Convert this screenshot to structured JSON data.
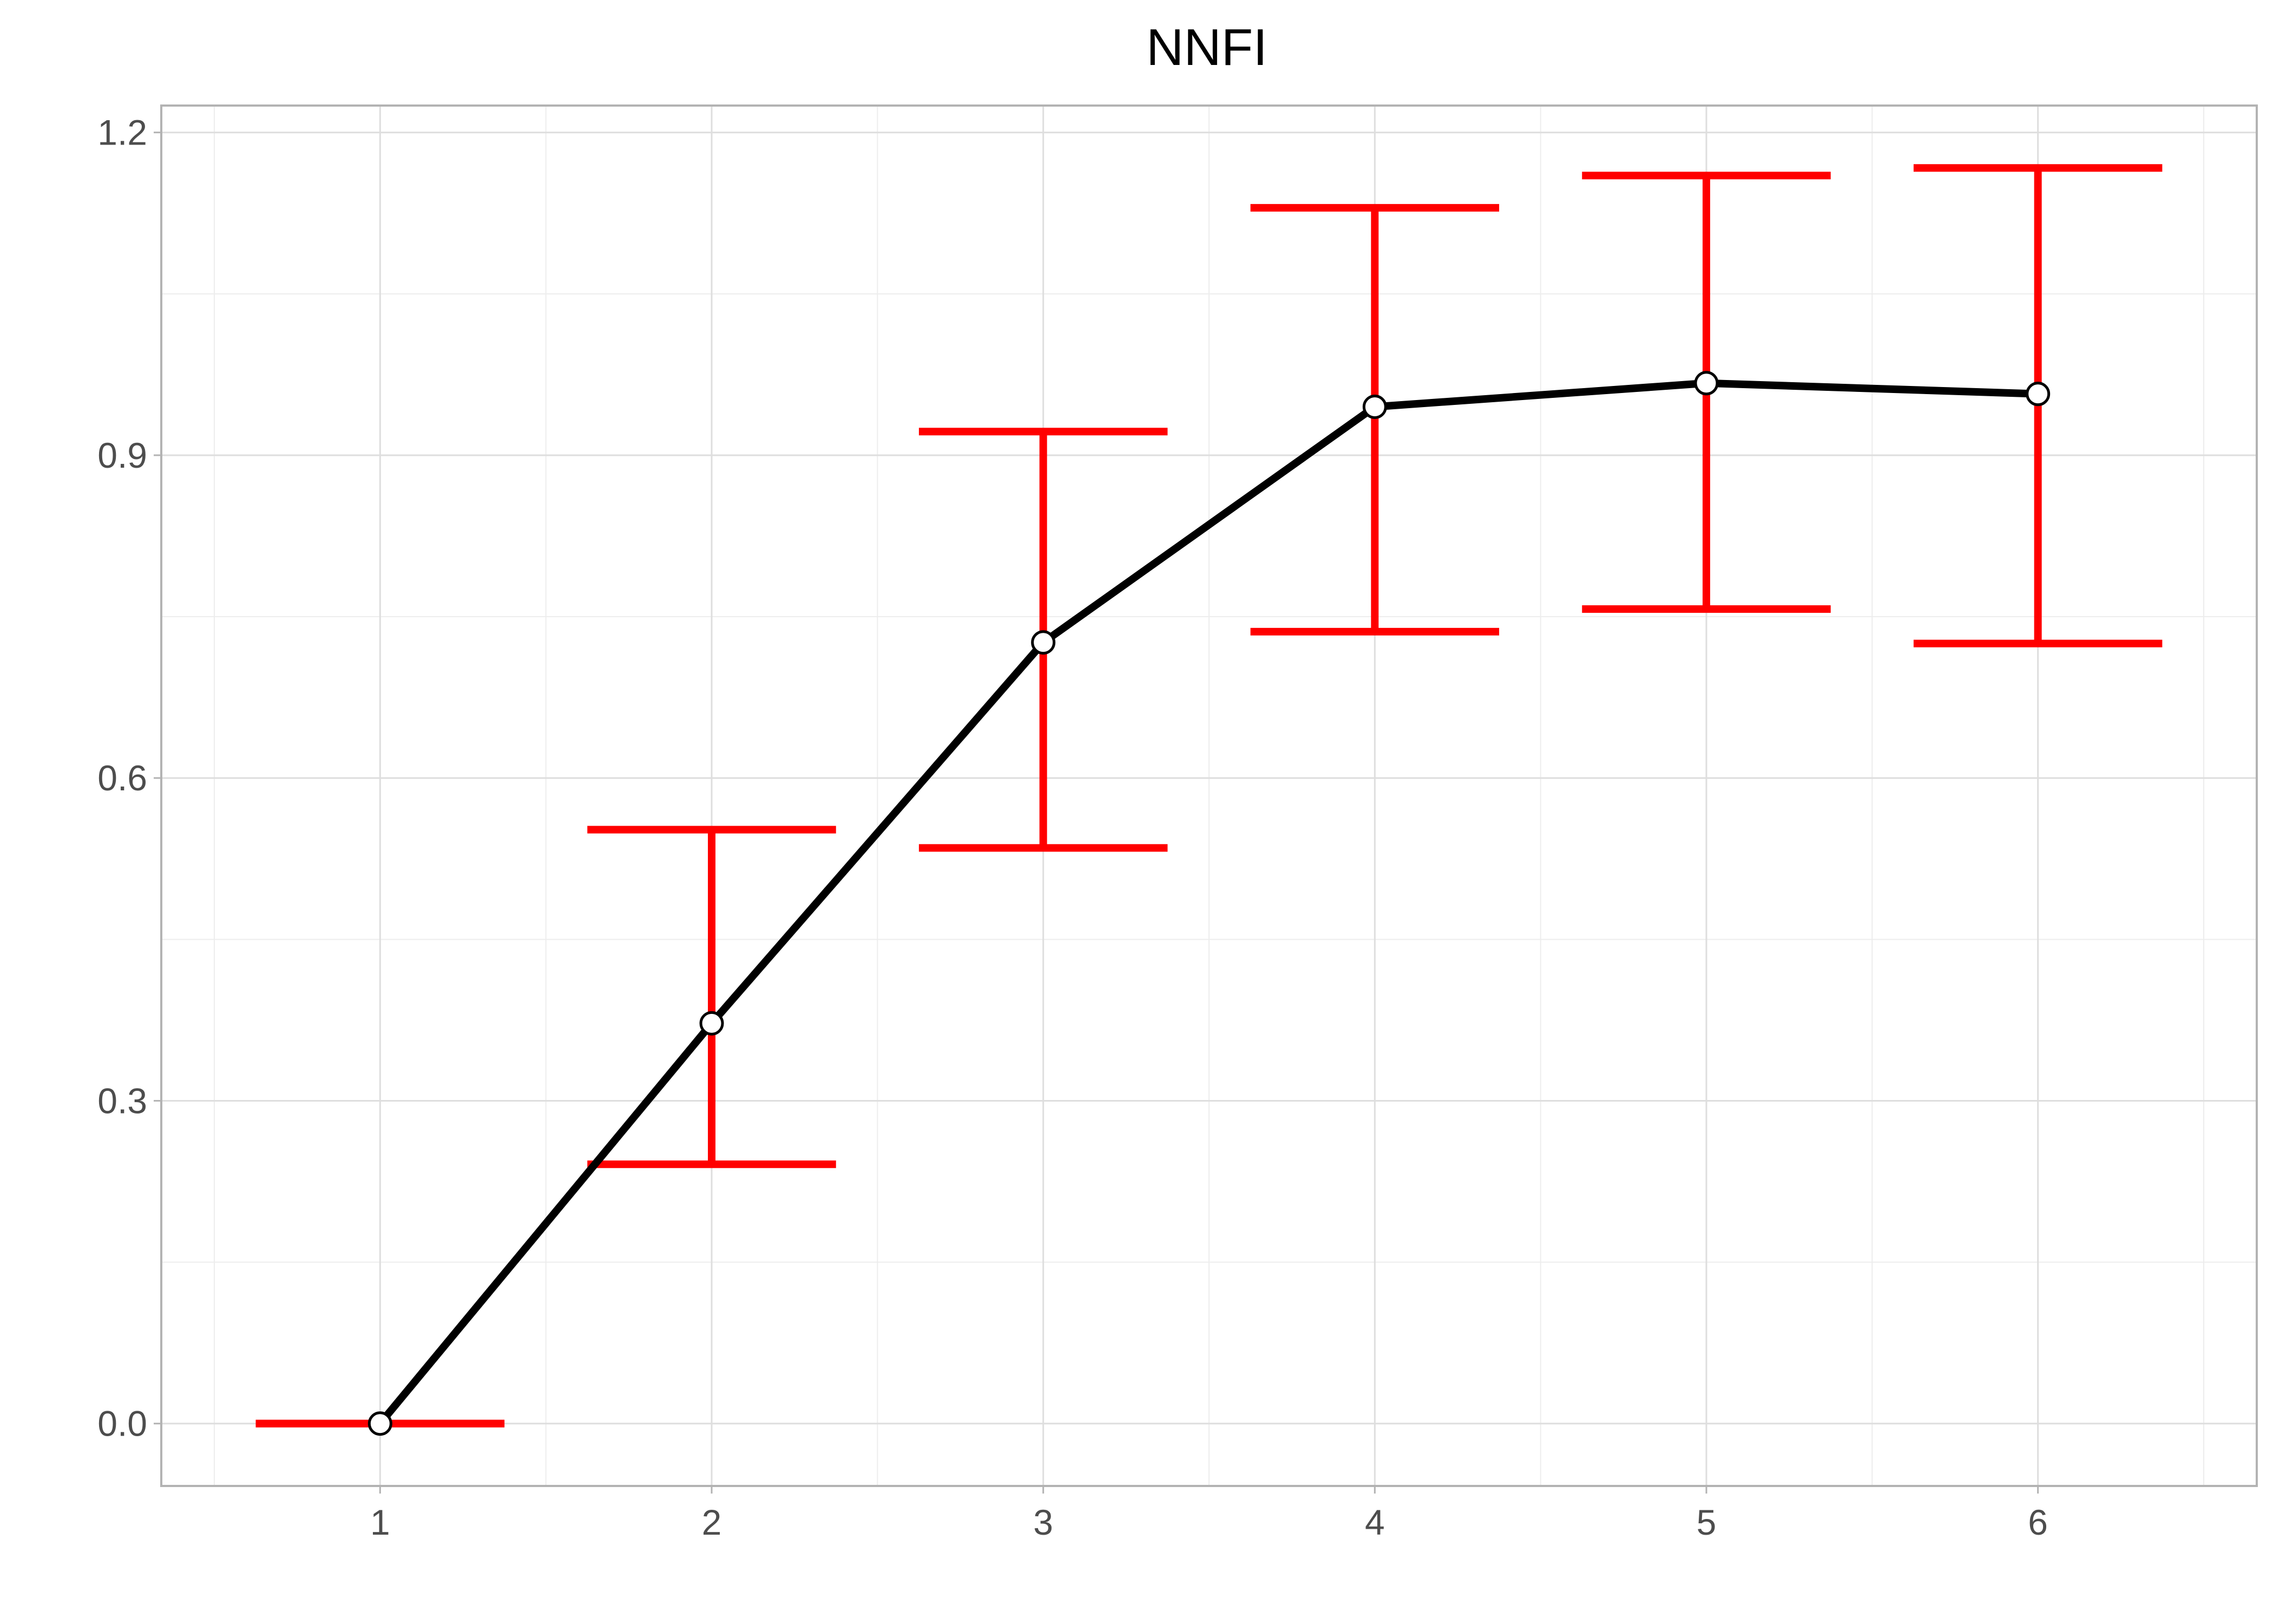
{
  "chart_data": {
    "type": "line",
    "title": "NNFI",
    "xlabel": "",
    "ylabel": "",
    "x": [
      1,
      2,
      3,
      4,
      5,
      6
    ],
    "series": [
      {
        "values": [
          0.0,
          0.372,
          0.726,
          0.945,
          0.967,
          0.957
        ],
        "lower": [
          0.0,
          0.241,
          0.535,
          0.736,
          0.757,
          0.725
        ],
        "upper": [
          0.0,
          0.552,
          0.922,
          1.13,
          1.16,
          1.167
        ],
        "line_color": "#000000",
        "errorbar_color": "#ff0000",
        "marker_fill": "#ffffff"
      }
    ],
    "xlim": [
      0.34,
      6.66
    ],
    "ylim": [
      -0.058,
      1.225
    ],
    "xticks": [
      "1",
      "2",
      "3",
      "4",
      "5",
      "6"
    ],
    "yticks": [
      "0.0",
      "0.3",
      "0.6",
      "0.9",
      "1.2"
    ],
    "ytick_values": [
      0.0,
      0.3,
      0.6,
      0.9,
      1.2
    ],
    "grid": true,
    "legend": "none"
  }
}
